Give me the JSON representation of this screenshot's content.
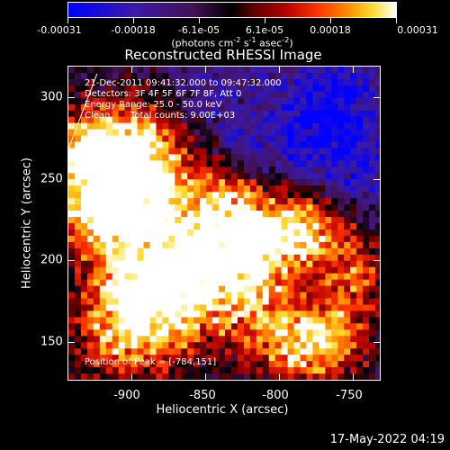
{
  "colorbar": {
    "ticks": [
      "-0.00031",
      "-0.00018",
      "-6.1e-05",
      "6.1e-05",
      "0.00018",
      "0.00031"
    ],
    "unit_text": "(photons cm",
    "unit_exp1": "-2",
    "unit_mid": " s",
    "unit_exp2": "-1",
    "unit_mid2": " asec",
    "unit_exp3": "-2",
    "unit_end": ")"
  },
  "title": "Reconstructed RHESSI Image",
  "annotations": {
    "time_range": "21-Dec-2011 09:41:32.000 to 09:47:32.000",
    "detectors": "Detectors: 3F 4F 5F 6F 7F 8F, Att 0",
    "energy": "Energy Range: 25.0 - 50.0 keV",
    "clean": "Clean",
    "counts": "Total counts: 9.00E+03",
    "peak": "Position of Peak = [-784,151]"
  },
  "axes": {
    "xlabel": "Heliocentric X (arcsec)",
    "ylabel": "Heliocentric Y (arcsec)",
    "xticks": [
      "-900",
      "-850",
      "-800",
      "-750"
    ],
    "yticks": [
      "300",
      "250",
      "200",
      "150"
    ]
  },
  "footer": {
    "timestamp": "17-May-2022 04:19"
  },
  "chart_data": {
    "type": "heatmap",
    "title": "Reconstructed RHESSI Image",
    "xlabel": "Heliocentric X (arcsec)",
    "ylabel": "Heliocentric Y (arcsec)",
    "xlim": [
      -937,
      -728
    ],
    "ylim": [
      126,
      320
    ],
    "xticks": [
      -900,
      -850,
      -800,
      -750
    ],
    "yticks": [
      150,
      200,
      250,
      300
    ],
    "color_range": [
      -0.00031,
      0.00031
    ],
    "colorbar_ticks": [
      -0.00031,
      -0.00018,
      -6.1e-05,
      6.1e-05,
      0.00018,
      0.00031
    ],
    "peak_position": [
      -784,
      151
    ],
    "colors": {
      "negative": "#0000ff",
      "zero": "#000000",
      "positive_high": "#ffffff",
      "positive_mid": "#ff3300"
    }
  }
}
